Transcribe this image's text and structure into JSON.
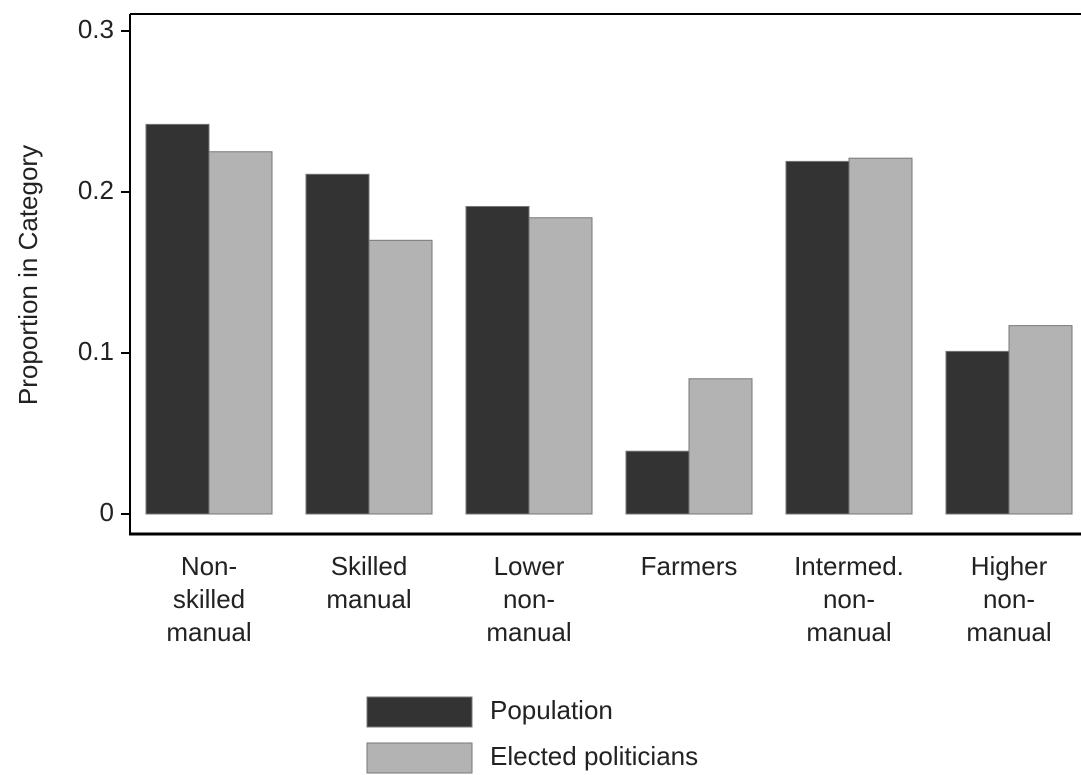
{
  "chart_data": {
    "type": "bar",
    "y_label": "Proportion in Category",
    "categories": [
      [
        "Non-",
        "skilled",
        "manual"
      ],
      [
        "Skilled",
        "manual"
      ],
      [
        "Lower",
        "non-",
        "manual"
      ],
      [
        "Farmers"
      ],
      [
        "Intermed.",
        "non-",
        "manual"
      ],
      [
        "Higher",
        "non-",
        "manual"
      ]
    ],
    "series": [
      {
        "name": "Population",
        "color": "#333333",
        "values": [
          0.242,
          0.211,
          0.191,
          0.039,
          0.219,
          0.101
        ]
      },
      {
        "name": "Elected politicians",
        "color": "#b3b3b3",
        "values": [
          0.225,
          0.17,
          0.184,
          0.084,
          0.221,
          0.117
        ]
      }
    ],
    "ylim": [
      0,
      0.3
    ],
    "yticks": [
      0,
      0.1,
      0.2,
      0.3
    ]
  }
}
